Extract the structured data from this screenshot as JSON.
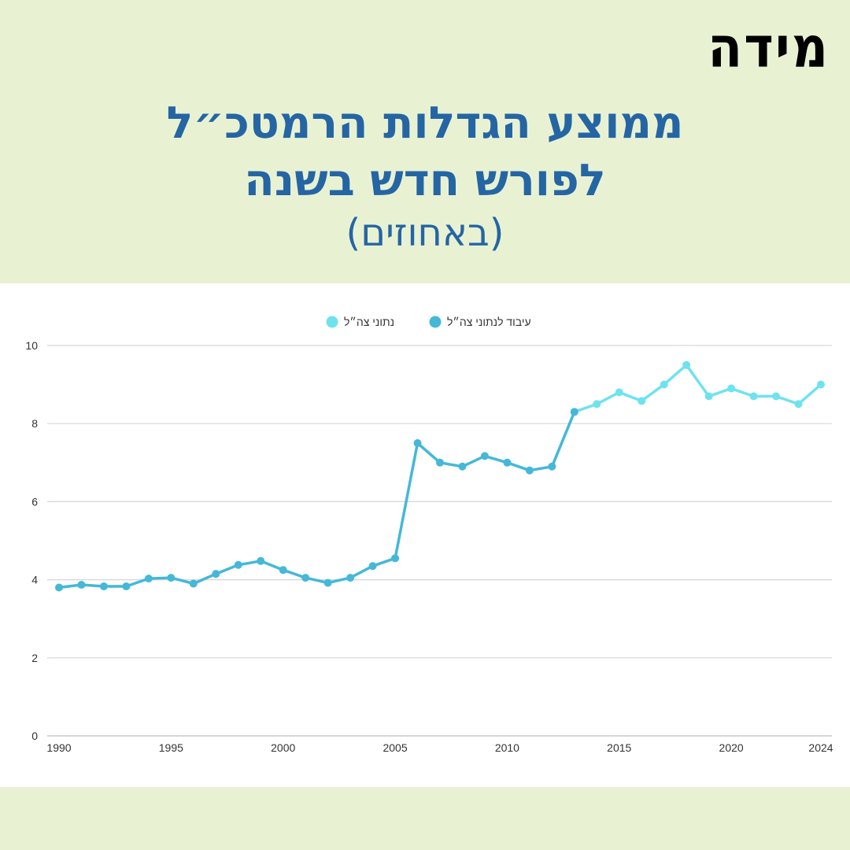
{
  "logo": "מידה",
  "title": {
    "line1": "ממוצע הגדלות הרמטכ״ל",
    "line2": "לפורש חדש בשנה",
    "line3": "(באחוזים)"
  },
  "colors": {
    "background": "#e8f2d3",
    "title": "#2565a4",
    "series_processed": "#45b8d8",
    "series_raw": "#6ee3ee"
  },
  "chart_data": {
    "type": "line",
    "title": "ממוצע הגדלות הרמטכ״ל לפורש חדש בשנה (באחוזים)",
    "xlabel": "",
    "ylabel": "",
    "ylim": [
      0,
      10
    ],
    "y_ticks": [
      0,
      2,
      4,
      6,
      8,
      10
    ],
    "x_ticks": [
      1990,
      1995,
      2000,
      2005,
      2010,
      2015,
      2020,
      2024
    ],
    "xlim": [
      1990,
      2024
    ],
    "grid": true,
    "legend_position": "top-center",
    "series": [
      {
        "name": "עיבוד לנתוני צה״ל",
        "color": "#45b8d8",
        "x": [
          1990,
          1991,
          1992,
          1993,
          1994,
          1995,
          1996,
          1997,
          1998,
          1999,
          2000,
          2001,
          2002,
          2003,
          2004,
          2005,
          2006,
          2007,
          2008,
          2009,
          2010,
          2011,
          2012,
          2013
        ],
        "values": [
          3.8,
          3.87,
          3.83,
          3.83,
          4.03,
          4.05,
          3.9,
          4.15,
          4.38,
          4.48,
          4.25,
          4.05,
          3.92,
          4.05,
          4.35,
          4.55,
          7.5,
          7.0,
          6.9,
          7.17,
          7.0,
          6.8,
          6.9,
          8.3
        ]
      },
      {
        "name": "נתוני צה״ל",
        "color": "#6ee3ee",
        "x": [
          2013,
          2014,
          2015,
          2016,
          2017,
          2018,
          2019,
          2020,
          2021,
          2022,
          2023,
          2024
        ],
        "values": [
          8.3,
          8.5,
          8.8,
          8.58,
          9.0,
          9.5,
          8.7,
          8.9,
          8.7,
          8.7,
          8.5,
          9.0
        ]
      }
    ]
  }
}
